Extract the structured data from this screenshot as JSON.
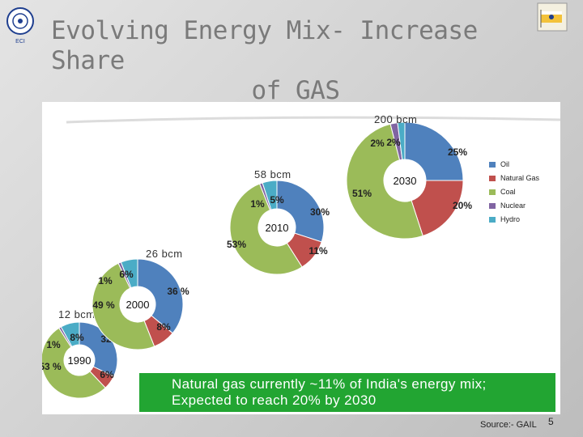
{
  "title_line1": "Evolving Energy Mix- Increase Share",
  "title_line2": "of GAS",
  "logo_left_text": "बैंक ऑफ़ इंडिया",
  "logo_left_caption": "ECI",
  "chart_data": {
    "type": "pie",
    "categories": [
      "Oil",
      "Natural Gas",
      "Coal",
      "Nuclear",
      "Hydro"
    ],
    "colors": [
      "#4f81bd",
      "#c0504d",
      "#9bbb59",
      "#8064a2",
      "#4bacc6"
    ],
    "legend_position": "right",
    "charts": [
      {
        "year": "1990",
        "volume": "12 bcm",
        "values": [
          32,
          6,
          53,
          1,
          8
        ],
        "labels": [
          "32 %",
          "6%",
          "53 %",
          "1%",
          "8%"
        ]
      },
      {
        "year": "2000",
        "volume": "26 bcm",
        "values": [
          36,
          8,
          49,
          1,
          6
        ],
        "labels": [
          "36 %",
          "8%",
          "49 %",
          "1%",
          "6%"
        ]
      },
      {
        "year": "2010",
        "volume": "58 bcm",
        "values": [
          30,
          11,
          53,
          1,
          5
        ],
        "labels": [
          "30%",
          "11%",
          "53%",
          "1%",
          "5%"
        ]
      },
      {
        "year": "2030",
        "volume": "200 bcm",
        "values": [
          25,
          20,
          51,
          2,
          2
        ],
        "labels": [
          "25%",
          "20%",
          "51%",
          "2%",
          "2%"
        ]
      }
    ]
  },
  "banner": {
    "line1": "Natural gas currently ~11% of India's energy mix;",
    "line2": "Expected to reach 20% by 2030"
  },
  "source": "Source:- GAIL",
  "page_number": "5"
}
